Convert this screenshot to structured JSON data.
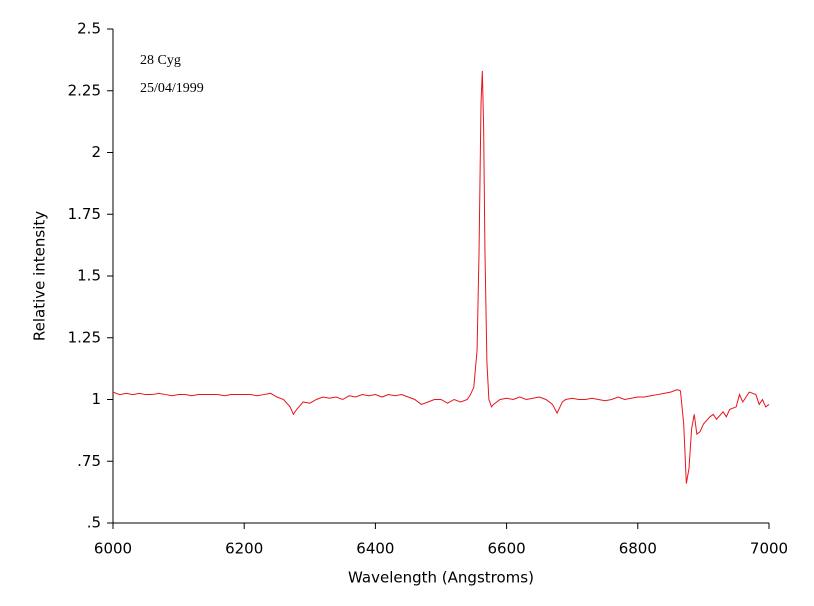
{
  "chart_data": {
    "type": "line",
    "xlabel": "Wavelength (Angstroms)",
    "ylabel": "Relative intensity",
    "annotations": [
      "28 Cyg",
      "25/04/1999"
    ],
    "xlim": [
      6000,
      7000
    ],
    "xticks": [
      6000,
      6200,
      6400,
      6600,
      6800,
      7000
    ],
    "ylim": [
      0.5,
      2.5
    ],
    "yticks": [
      {
        "value": 0.5,
        "label": ".5"
      },
      {
        "value": 0.75,
        "label": ".75"
      },
      1,
      1.25,
      1.5,
      1.75,
      2,
      2.25,
      2.5
    ],
    "grid": false,
    "x": [
      6000,
      6010,
      6020,
      6030,
      6040,
      6050,
      6060,
      6070,
      6080,
      6090,
      6100,
      6110,
      6120,
      6130,
      6140,
      6150,
      6160,
      6170,
      6180,
      6190,
      6200,
      6210,
      6220,
      6230,
      6240,
      6250,
      6260,
      6270,
      6275,
      6280,
      6290,
      6300,
      6310,
      6320,
      6330,
      6340,
      6350,
      6360,
      6370,
      6380,
      6390,
      6400,
      6410,
      6420,
      6430,
      6440,
      6450,
      6460,
      6470,
      6480,
      6490,
      6500,
      6510,
      6520,
      6530,
      6540,
      6545,
      6550,
      6555,
      6558,
      6561,
      6563,
      6565,
      6567,
      6570,
      6573,
      6577,
      6580,
      6590,
      6600,
      6610,
      6620,
      6630,
      6640,
      6650,
      6660,
      6670,
      6677,
      6685,
      6690,
      6700,
      6710,
      6720,
      6730,
      6740,
      6750,
      6760,
      6770,
      6780,
      6790,
      6800,
      6810,
      6820,
      6830,
      6840,
      6850,
      6860,
      6865,
      6870,
      6874,
      6878,
      6882,
      6886,
      6890,
      6895,
      6900,
      6910,
      6915,
      6920,
      6930,
      6935,
      6940,
      6950,
      6955,
      6960,
      6970,
      6980,
      6985,
      6990,
      6995,
      7000
    ],
    "series": [
      {
        "color": "#e8141c",
        "values": [
          1.03,
          1.02,
          1.025,
          1.02,
          1.025,
          1.02,
          1.02,
          1.025,
          1.02,
          1.015,
          1.02,
          1.02,
          1.015,
          1.02,
          1.02,
          1.02,
          1.02,
          1.015,
          1.02,
          1.02,
          1.02,
          1.02,
          1.015,
          1.02,
          1.025,
          1.01,
          1.0,
          0.97,
          0.94,
          0.96,
          0.99,
          0.985,
          1.0,
          1.01,
          1.005,
          1.01,
          1.0,
          1.015,
          1.01,
          1.02,
          1.015,
          1.02,
          1.01,
          1.02,
          1.015,
          1.02,
          1.01,
          1.0,
          0.98,
          0.99,
          1.0,
          1.0,
          0.985,
          1.0,
          0.99,
          1.0,
          1.02,
          1.05,
          1.2,
          1.6,
          2.2,
          2.33,
          2.1,
          1.6,
          1.15,
          1.0,
          0.97,
          0.98,
          1.0,
          1.005,
          1.0,
          1.01,
          1.0,
          1.005,
          1.01,
          1.0,
          0.98,
          0.945,
          0.99,
          1.0,
          1.005,
          1.0,
          1.0,
          1.005,
          1.0,
          0.995,
          1.0,
          1.01,
          1.0,
          1.005,
          1.01,
          1.01,
          1.015,
          1.02,
          1.025,
          1.03,
          1.04,
          1.035,
          0.9,
          0.66,
          0.72,
          0.88,
          0.94,
          0.86,
          0.87,
          0.9,
          0.93,
          0.94,
          0.92,
          0.95,
          0.93,
          0.96,
          0.97,
          1.02,
          0.99,
          1.03,
          1.02,
          0.98,
          1.0,
          0.97,
          0.98
        ]
      }
    ]
  }
}
